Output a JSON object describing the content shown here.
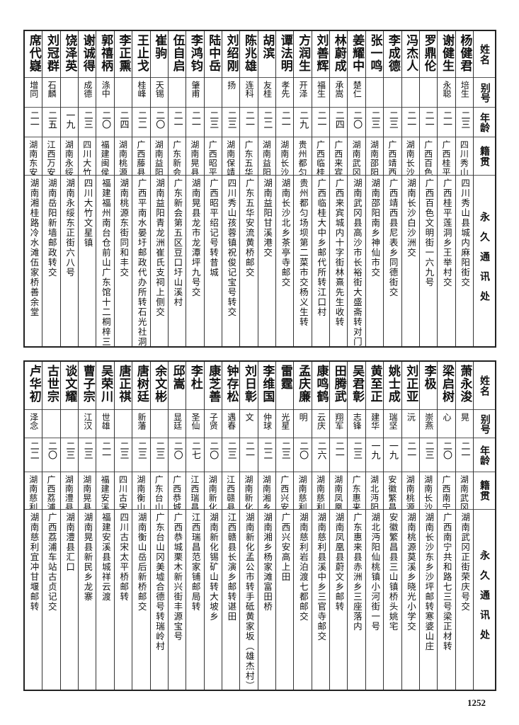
{
  "headers": {
    "name": "姓名",
    "alias": "别号",
    "age": "年龄",
    "origin": "籍贯",
    "address": "永久通讯处"
  },
  "tables": [
    {
      "rows": [
        {
          "name": "杨健君",
          "alias": "培生",
          "age": "二三",
          "origin": "四川秀山",
          "address": "四川秀山县城内麻阳街交"
        },
        {
          "name": "谢健生",
          "alias": "永聪",
          "age": "二一",
          "origin": "广西桂平",
          "address": "广西桂平莲洞乡王举村交"
        },
        {
          "name": "罗鼎伦",
          "alias": "",
          "age": "二一",
          "origin": "广西百色",
          "address": "广西百色文明街一六九号"
        },
        {
          "name": "冯杰人",
          "alias": "",
          "age": "二一",
          "origin": "湖南长沙",
          "address": "湖南长沙白沙洲交"
        },
        {
          "name": "李成德",
          "alias": "",
          "age": "二三",
          "origin": "广西靖西",
          "address": "广西靖西县尼表乡同德街交"
        },
        {
          "name": "张一鸣",
          "alias": "",
          "age": "二三",
          "origin": "湖南邵阳",
          "address": "湖南邵阳南乡神仙市交"
        },
        {
          "name": "姜耀中",
          "alias": "楚仁",
          "age": "二〇",
          "origin": "湖南武冈",
          "address": "湖南武冈县高沙市长裕街大盛斋转对门山姜家"
        },
        {
          "name": "林蔚成",
          "alias": "承嵩",
          "age": "二四",
          "origin": "广西来宾",
          "address": "广西来宾城内十字街林熹先生收转"
        },
        {
          "name": "刘善辉",
          "alias": "福生",
          "age": "二一",
          "origin": "广西临桂",
          "address": "广西临桂大中乡邮代所转江口村"
        },
        {
          "name": "方润生",
          "alias": "开泽",
          "age": "二九",
          "origin": "贵州都匀",
          "address": "贵州都匀场坝第二菜市交杨义生转"
        },
        {
          "name": "谭法明",
          "alias": "孝先",
          "age": "二一",
          "origin": "湖南长沙",
          "address": "湖南长沙北乡茶亭寺邮交"
        },
        {
          "name": "胡滨",
          "alias": "友桂",
          "age": "二二",
          "origin": "湖南益阳",
          "address": "湖南益阳甘溪港交"
        },
        {
          "name": "陈兆雄",
          "alias": "连科",
          "age": "二一",
          "origin": "广东五华",
          "address": "广东五华安流黄桥邮交"
        },
        {
          "name": "刘绍刚",
          "alias": "扬",
          "age": "二三",
          "origin": "湖南保靖",
          "address": "四川秀山孩蓉镇祝俊记宝号转交"
        },
        {
          "name": "陆中岳",
          "alias": "",
          "age": "二三",
          "origin": "广西昭平",
          "address": "广西昭平绍记号转昔城"
        },
        {
          "name": "李鸿钧",
          "alias": "肇甫",
          "age": "二一",
          "origin": "湖南晃县",
          "address": "湖南晃县龙市龙潭坪九号交"
        },
        {
          "name": "伍自启",
          "alias": "",
          "age": "二一",
          "origin": "广东新会",
          "address": "广东新会第五区豆口圩山溪村"
        },
        {
          "name": "崔驹",
          "alias": "天锡",
          "age": "二〇",
          "origin": "湖南益阳",
          "address": "湖南益阳青龙洲崔氏支祠上侧交"
        },
        {
          "name": "王止戈",
          "alias": "桂峰",
          "age": "二二",
          "origin": "广西藤县",
          "address": "广西平南水晏圩邮政代办所转石光社洞村交"
        },
        {
          "name": "李正熏",
          "alias": "",
          "age": "二四",
          "origin": "湖南桃源",
          "address": "湖南桃源东街同和丰交"
        },
        {
          "name": "郭禧柄",
          "alias": "涤中",
          "age": "二〇",
          "origin": "福建闽侯",
          "address": "福建福州南台仓前山广东馆十二桐梓三号"
        },
        {
          "name": "谢诚得",
          "alias": "成德",
          "age": "二三",
          "origin": "四川大竹",
          "address": "四川大竹文星镇"
        },
        {
          "name": "饶泽英",
          "alias": "",
          "age": "一九",
          "origin": "湖南永绥",
          "address": "湖南永绥东正街六八号"
        },
        {
          "name": "刘冠群",
          "alias": "石麟",
          "age": "二五",
          "origin": "江西万安",
          "address": "湖南岳阳新墙邮政转交"
        },
        {
          "name": "席代嶷",
          "alias": "增同",
          "age": "二一",
          "origin": "湖南东安",
          "address": "湖南湘桂路冷水滩伍家桥善余堂"
        }
      ]
    },
    {
      "rows": [
        {
          "name": "萧永浚",
          "alias": "晃",
          "age": "二一",
          "origin": "湖南武冈",
          "address": "湖南武冈正街荣庆号交"
        },
        {
          "name": "梁启树",
          "alias": "心",
          "age": "二〇",
          "origin": "广西南宁",
          "address": "广西南宁共和路七三号梁正材转"
        },
        {
          "name": "李极",
          "alias": "崇燕",
          "age": "二三",
          "origin": "湖南长沙",
          "address": "湖南长沙东乡沙坪邮转寒婆山庄"
        },
        {
          "name": "刘正亚",
          "alias": "沅",
          "age": "二一",
          "origin": "湖南桃源",
          "address": "湖南桃源莫溪乡晓光小学交"
        },
        {
          "name": "姚士成",
          "alias": "瑞坚",
          "age": "一九",
          "origin": "安徽繁昌",
          "address": "安徽繁昌县三山镇桥头姚宅"
        },
        {
          "name": "黄至正",
          "alias": "建华",
          "age": "一九",
          "origin": "湖北沔阳",
          "address": "湖北沔阳仙桃镇小河街一号"
        },
        {
          "name": "吴君彰",
          "alias": "志锋",
          "age": "二三",
          "origin": "广东惠来",
          "address": "广东惠来县赤洲乡三座落内"
        },
        {
          "name": "田腾武",
          "alias": "翔军",
          "age": "二一",
          "origin": "湖南凤凰",
          "address": "湖南凤凰县蔚文乡邮转"
        },
        {
          "name": "康鸣鹤",
          "alias": "云庆",
          "age": "二六",
          "origin": "湖南慈利",
          "address": "湖南慈利县溪中乡三官寺邮交"
        },
        {
          "name": "孟庆廉",
          "alias": "明",
          "age": "二〇",
          "origin": "湖南慈利",
          "address": "湖南慈利岩泊渡七都邮交"
        },
        {
          "name": "雷霆",
          "alias": "光星",
          "age": "二三",
          "origin": "广西兴安",
          "address": "广西兴安高上田"
        },
        {
          "name": "李维国",
          "alias": "仲球",
          "age": "二二",
          "origin": "湖南湘乡",
          "address": "湖南湘乡杨家滩富田桥"
        },
        {
          "name": "刘日彰",
          "alias": "文",
          "age": "二一",
          "origin": "湖南新化",
          "address": "湖南新化孟公市转手砥黄家坂（雄杰村）交"
        },
        {
          "name": "钟存松",
          "alias": "遇春",
          "age": "二三",
          "origin": "江西赣县",
          "address": "江西赣县长演乡邮转谌田"
        },
        {
          "name": "康芝善",
          "alias": "子贤",
          "age": "二〇",
          "origin": "湖南新化",
          "address": "湖南新化锡矿山转大坡乡"
        },
        {
          "name": "李杜",
          "alias": "圣仙",
          "age": "二七",
          "origin": "江西瑞昌",
          "address": "江西瑞昌范家铺邮局转"
        },
        {
          "name": "邱嵩",
          "alias": "显廷",
          "age": "二〇",
          "origin": "广西恭城",
          "address": "广西恭城栗木新兴街丰源宝号"
        },
        {
          "name": "余文彬",
          "alias": "",
          "age": "二三",
          "origin": "广东台山",
          "address": "广东台山冈美墟合德号转瑞岭村"
        },
        {
          "name": "唐树廷",
          "alias": "新藩",
          "age": "二三",
          "origin": "湖南衡山",
          "address": "湖南衡山岳后新桥邮交"
        },
        {
          "name": "唐正祺",
          "alias": "",
          "age": "二三",
          "origin": "四川古宋",
          "address": "四川古宋太平桥邮转"
        },
        {
          "name": "吴荣川",
          "alias": "世雄",
          "age": "二一",
          "origin": "福建安溪",
          "address": "福建安溪县城祥云渡"
        },
        {
          "name": "曹子宗",
          "alias": "江汉",
          "age": "二三",
          "origin": "湖南晃县",
          "address": "湖南晃县新民乡龙寨"
        },
        {
          "name": "谈文耀",
          "alias": "",
          "age": "二三",
          "origin": "湖南澧县",
          "address": "湖南澧县汇口"
        },
        {
          "name": "古世宗",
          "alias": "",
          "age": "二〇",
          "origin": "广西荔浦",
          "address": "广西荔浦车站古贞记交"
        },
        {
          "name": "卢华初",
          "alias": "泽念",
          "age": "二二",
          "origin": "湖南慈利",
          "address": "湖南慈利宜冲甘堰邮转"
        }
      ]
    }
  ],
  "page_number": "1252"
}
